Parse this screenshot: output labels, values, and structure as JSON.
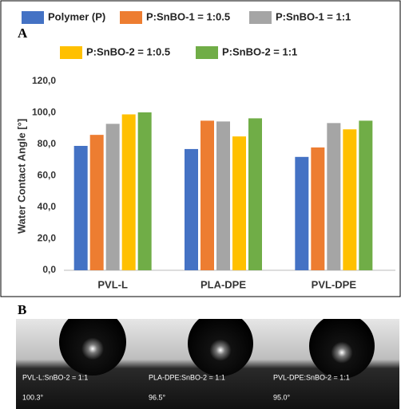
{
  "chart_data": {
    "type": "bar",
    "panel_label": "A",
    "y_label": "Water Contact Angle [°]",
    "categories": [
      "PVL-L",
      "PLA-DPE",
      "PVL-DPE"
    ],
    "series": [
      {
        "name": "Polymer (P)",
        "color": "#4472c4",
        "values": [
          79,
          77,
          72
        ]
      },
      {
        "name": "P:SnBO-1 = 1:0.5",
        "color": "#ed7d31",
        "values": [
          86,
          95,
          78
        ]
      },
      {
        "name": "P:SnBO-1 = 1:1",
        "color": "#a5a5a5",
        "values": [
          93,
          94.5,
          93.5
        ]
      },
      {
        "name": "P:SnBO-2 = 1:0.5",
        "color": "#ffc000",
        "values": [
          99,
          85,
          89.5
        ]
      },
      {
        "name": "P:SnBO-2 = 1:1",
        "color": "#70ad47",
        "values": [
          100.3,
          96.5,
          95.0
        ]
      }
    ],
    "ylim": [
      0,
      120
    ],
    "yticks": [
      {
        "value": 0,
        "label": "0,0"
      },
      {
        "value": 20,
        "label": "20,0"
      },
      {
        "value": 40,
        "label": "40,0"
      },
      {
        "value": 60,
        "label": "60,0"
      },
      {
        "value": 80,
        "label": "80,0"
      },
      {
        "value": 100,
        "label": "100,0"
      },
      {
        "value": 120,
        "label": "120,0"
      }
    ],
    "grid": false
  },
  "panel_b": {
    "label": "B",
    "images": [
      {
        "label": "PVL-L:SnBO-2 = 1:1",
        "angle": "100.3°"
      },
      {
        "label": "PLA-DPE:SnBO-2 = 1:1",
        "angle": "96.5°"
      },
      {
        "label": "PVL-DPE:SnBO-2 = 1:1",
        "angle": "95.0°"
      }
    ]
  }
}
